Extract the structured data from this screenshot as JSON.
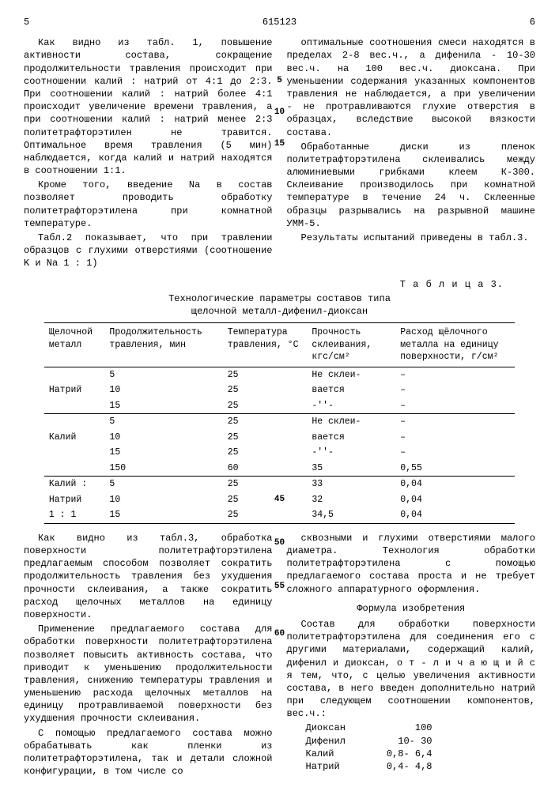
{
  "header": {
    "page_left": "5",
    "doc_number": "615123",
    "page_right": "6"
  },
  "top_left_paragraphs": [
    "Как видно из табл. 1, повышение активности состава, сокращение продолжительности травления происходит при соотношении калий : натрий от 4:1 до 2:3. При соотношении калий : натрий более 4:1 происходит увеличение времени травления, а при соотношении калий : натрий менее 2:3 политетрафторэтилен не травится. Оптимальное время травления (5 мин) наблюдается, когда калий и натрий находятся в соотношении 1:1.",
    "Кроме того, введение Na в состав позволяет проводить обработку политетрафторэтилена при комнатной температуре.",
    "Табл.2 показывает, что при травлении образцов с глухими отверстиями (соотношение K и Na 1 : 1)"
  ],
  "top_right_paragraphs": [
    "оптимальные соотношения смеси находятся в пределах 2-8 вес.ч., а дифенила - 10-30 вес.ч. на 100 вес.ч. диоксана. При уменьшении содержания указанных компонентов травления не наблюдается, а при увеличении - не протравливаются глухие отверстия в образцах, вследствие высокой вязкости состава.",
    "Обработанные диски из пленок политетрафторэтилена склеивались между алюминиевыми грибками клеем К-300. Склеивание производилось при комнатной температуре в течение 24 ч. Склеенные образцы разрывались на разрывной машине УММ-5.",
    "Результаты испытаний приведены в табл.3."
  ],
  "table": {
    "caption": "Т а б л и ц а 3.",
    "title_line1": "Технологические параметры составов типа",
    "title_line2": "щелочной металл-дифенил-диоксан",
    "headers": [
      "Щелочной металл",
      "Продолжительность травления, мин",
      "Температура травления, °С",
      "Прочность склеивания, кгс/см²",
      "Расход щёлочного металла на единицу поверхности, г/см²"
    ],
    "groups": [
      {
        "label": "Натрий",
        "rows": [
          [
            "5",
            "25",
            "Не склеи-",
            "–"
          ],
          [
            "10",
            "25",
            "вается",
            "–"
          ],
          [
            "15",
            "25",
            "-''-",
            "–"
          ]
        ]
      },
      {
        "label": "Калий",
        "rows": [
          [
            "5",
            "25",
            "Не склеи-",
            "–"
          ],
          [
            "10",
            "25",
            "вается",
            "–"
          ],
          [
            "15",
            "25",
            "-''-",
            "–"
          ],
          [
            "150",
            "60",
            "35",
            "0,55"
          ]
        ]
      },
      {
        "label": "Калий : Натрий 1 : 1",
        "label_lines": [
          "Калий :",
          "Натрий",
          " 1 : 1"
        ],
        "rows": [
          [
            "5",
            "25",
            "33",
            "0,04"
          ],
          [
            "10",
            "25",
            "32",
            "0,04"
          ],
          [
            "15",
            "25",
            "34,5",
            "0,04"
          ]
        ]
      }
    ]
  },
  "bottom_left_paragraphs": [
    "Как видно из табл.3, обработка поверхности политетрафторэтилена предлагаемым способом позволяет сократить продолжительность травления без ухудшения прочности склеивания, а также сократить расход щелочных металлов на единицу поверхности.",
    "Применение предлагаемого состава для обработки поверхности политетрафторэтилена позволяет повысить активность состава, что приводит к уменьшению продолжительности травления, снижению температуры травления и уменьшению расхода щелочных металлов на единицу протравливаемой поверхности без ухудшения прочности склеивания.",
    "С помощью предлагаемого состава можно обрабатывать как пленки из политетрафторэтилена, так и детали сложной конфигурации, в том числе со"
  ],
  "bottom_right_paragraphs": [
    "сквозными и глухими отверстиями малого диаметра. Технология обработки политетрафторэтилена с помощью предлагаемого состава проста и не требует сложного аппаратурного оформления."
  ],
  "formula": {
    "title": "Формула изобретения",
    "body": "Состав для обработки поверхности политетрафторэтилена для соединения его с другими материалами, содержащий калий, дифенил и диоксан, о т - л и ч а ю щ и й с я  тем, что, с целью увеличения активности состава, в него введен дополнительно натрий при следующем соотношении компонентов, вес.ч.:",
    "components": [
      {
        "name": "Диоксан",
        "value": "100"
      },
      {
        "name": "Дифенил",
        "value": "10- 30"
      },
      {
        "name": "Калий",
        "value": "0,8- 6,4"
      },
      {
        "name": "Натрий",
        "value": "0,4- 4,8"
      }
    ]
  },
  "line_numbers": [
    "5",
    "10",
    "15",
    "45",
    "50",
    "55",
    "60"
  ]
}
